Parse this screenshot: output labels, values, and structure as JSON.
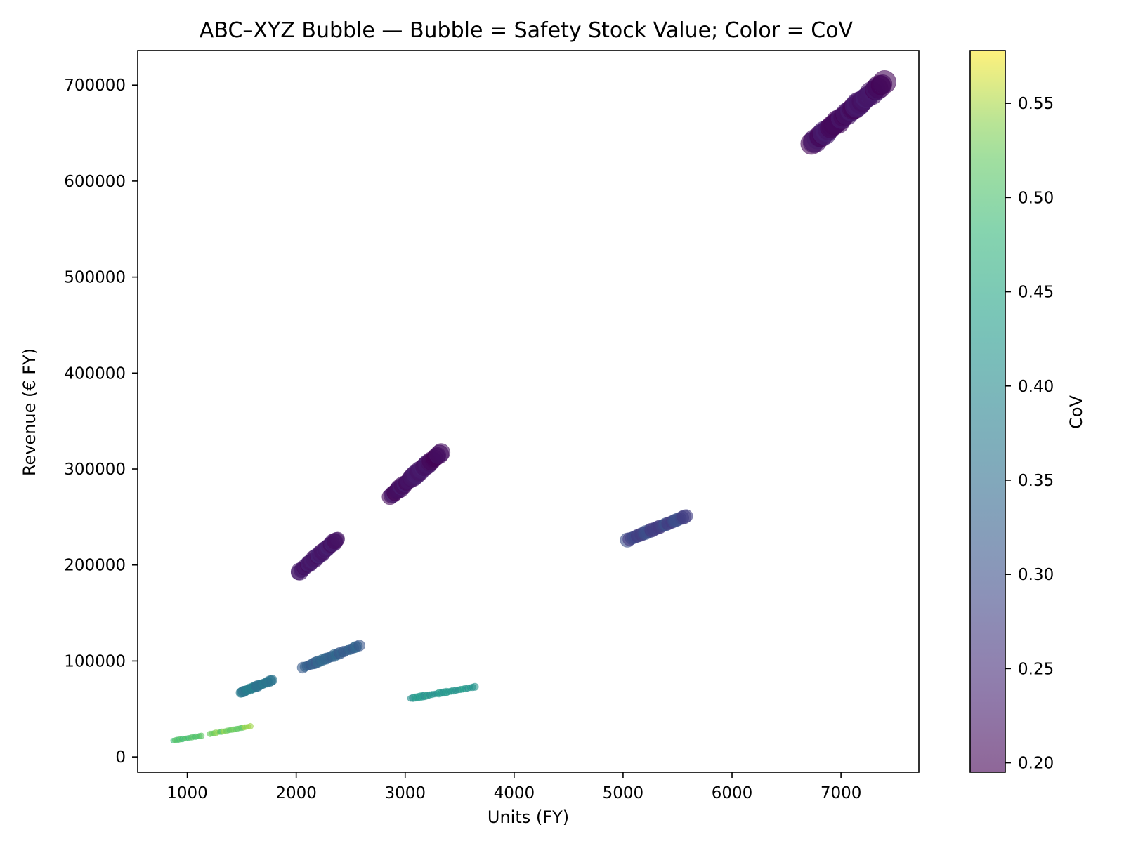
{
  "chart_data": {
    "type": "scatter",
    "title": "ABC–XYZ Bubble — Bubble = Safety Stock Value; Color = CoV",
    "xlabel": "Units (FY)",
    "ylabel": "Revenue (€ FY)",
    "xlim": [
      545,
      7715
    ],
    "ylim": [
      -16000,
      736000
    ],
    "xticks": [
      1000,
      2000,
      3000,
      4000,
      5000,
      6000,
      7000
    ],
    "xtick_labels": [
      "1000",
      "2000",
      "3000",
      "4000",
      "5000",
      "6000",
      "7000"
    ],
    "yticks": [
      0,
      100000,
      200000,
      300000,
      400000,
      500000,
      600000,
      700000
    ],
    "ytick_labels": [
      "0",
      "100000",
      "200000",
      "300000",
      "400000",
      "500000",
      "600000",
      "700000"
    ],
    "grid": false,
    "size_encoding": "Safety Stock Value",
    "color_encoding": "CoV",
    "colormap": "viridis",
    "alpha": 0.6,
    "colorbar": {
      "label": "CoV",
      "range": [
        0.195,
        0.578
      ],
      "ticks": [
        0.2,
        0.25,
        0.3,
        0.35,
        0.4,
        0.45,
        0.5,
        0.55
      ],
      "tick_labels": [
        "0.20",
        "0.25",
        "0.30",
        "0.35",
        "0.40",
        "0.45",
        "0.50",
        "0.55"
      ]
    },
    "clusters": [
      {
        "x_range": [
          6730,
          7400
        ],
        "y_range": [
          639000,
          703000
        ],
        "cov": 0.215,
        "size_range": [
          0.78,
          1.0
        ],
        "n": 40
      },
      {
        "x_range": [
          2860,
          3330
        ],
        "y_range": [
          271000,
          317000
        ],
        "cov": 0.215,
        "size_range": [
          0.65,
          0.82
        ],
        "n": 32
      },
      {
        "x_range": [
          2020,
          2380
        ],
        "y_range": [
          192000,
          227000
        ],
        "cov": 0.225,
        "size_range": [
          0.58,
          0.75
        ],
        "n": 30
      },
      {
        "x_range": [
          5040,
          5580
        ],
        "y_range": [
          226000,
          251000
        ],
        "cov": 0.285,
        "size_range": [
          0.5,
          0.6
        ],
        "n": 30
      },
      {
        "x_range": [
          2060,
          2580
        ],
        "y_range": [
          93000,
          116000
        ],
        "cov": 0.33,
        "size_range": [
          0.38,
          0.5
        ],
        "n": 30
      },
      {
        "x_range": [
          1490,
          1780
        ],
        "y_range": [
          67000,
          80000
        ],
        "cov": 0.37,
        "size_range": [
          0.36,
          0.46
        ],
        "n": 25
      },
      {
        "x_range": [
          3050,
          3640
        ],
        "y_range": [
          61000,
          73000
        ],
        "cov": 0.42,
        "size_range": [
          0.25,
          0.34
        ],
        "n": 28
      },
      {
        "x_range": [
          870,
          1130
        ],
        "y_range": [
          17000,
          22000
        ],
        "cov": 0.5,
        "size_range": [
          0.2,
          0.26
        ],
        "n": 16
      },
      {
        "x_range": [
          1210,
          1580
        ],
        "y_range": [
          24000,
          32000
        ],
        "cov": 0.53,
        "size_range": [
          0.2,
          0.26
        ],
        "n": 22
      }
    ]
  }
}
